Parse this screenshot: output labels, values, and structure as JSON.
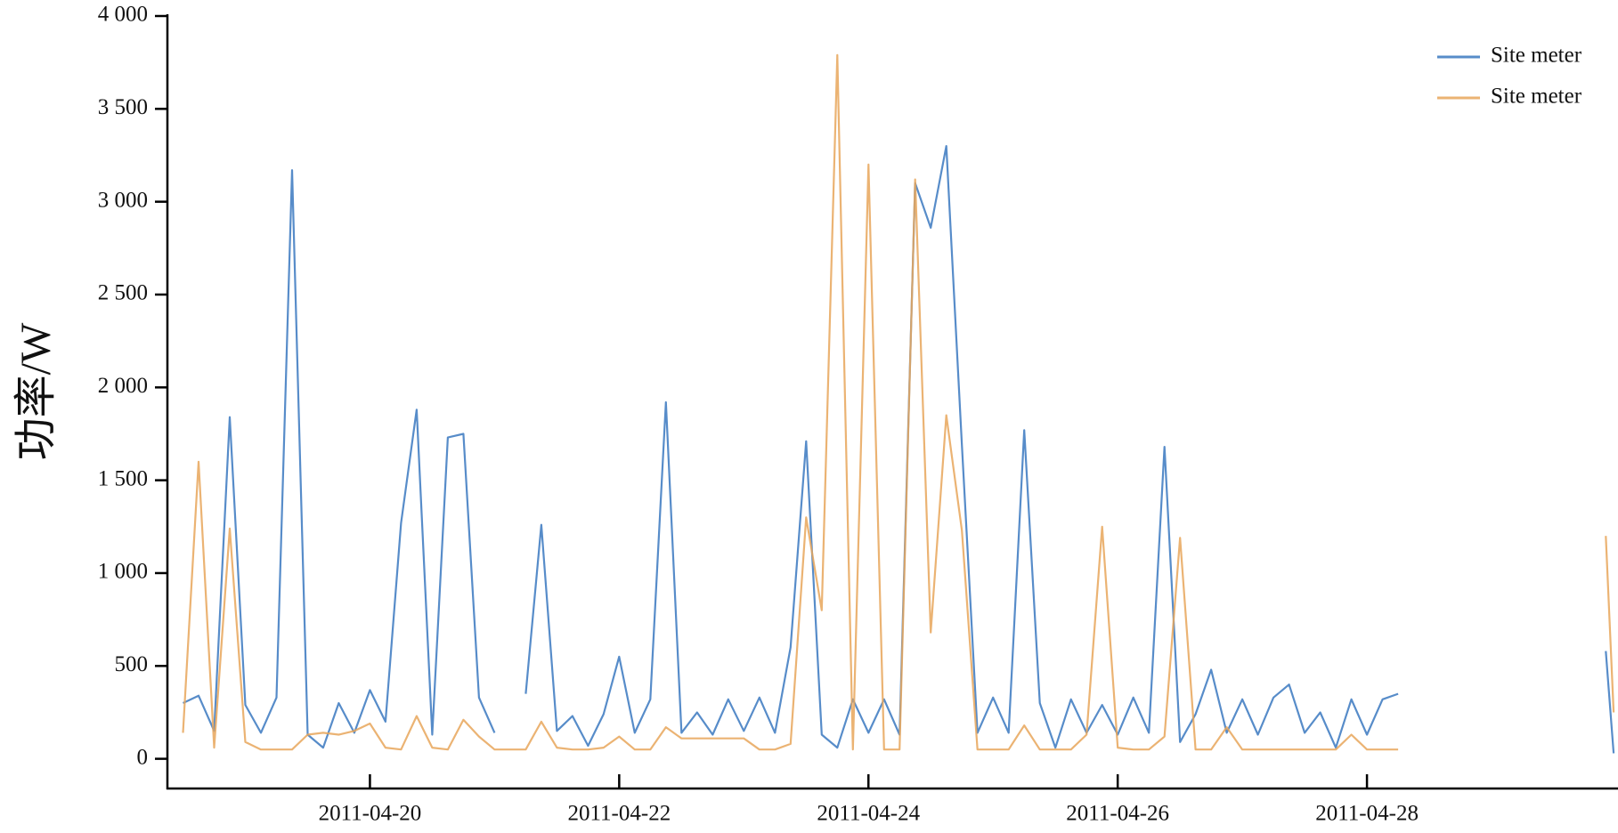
{
  "chart_data": {
    "type": "line",
    "ylabel": "功率/W",
    "x": [
      "2011-04-18T12:00",
      "2011-04-18T15:00",
      "2011-04-18T18:00",
      "2011-04-18T21:00",
      "2011-04-19T00:00",
      "2011-04-19T03:00",
      "2011-04-19T06:00",
      "2011-04-19T09:00",
      "2011-04-19T12:00",
      "2011-04-19T15:00",
      "2011-04-19T18:00",
      "2011-04-19T21:00",
      "2011-04-20T00:00",
      "2011-04-20T03:00",
      "2011-04-20T06:00",
      "2011-04-20T09:00",
      "2011-04-20T12:00",
      "2011-04-20T15:00",
      "2011-04-20T18:00",
      "2011-04-20T21:00",
      "2011-04-21T00:00",
      "2011-04-21T03:00",
      "2011-04-21T06:00",
      "2011-04-21T09:00",
      "2011-04-21T12:00",
      "2011-04-21T15:00",
      "2011-04-21T18:00",
      "2011-04-21T21:00",
      "2011-04-22T00:00",
      "2011-04-22T03:00",
      "2011-04-22T06:00",
      "2011-04-22T09:00",
      "2011-04-22T12:00",
      "2011-04-22T15:00",
      "2011-04-22T18:00",
      "2011-04-22T21:00",
      "2011-04-23T00:00",
      "2011-04-23T03:00",
      "2011-04-23T06:00",
      "2011-04-23T09:00",
      "2011-04-23T12:00",
      "2011-04-23T15:00",
      "2011-04-23T18:00",
      "2011-04-23T21:00",
      "2011-04-24T00:00",
      "2011-04-24T03:00",
      "2011-04-24T06:00",
      "2011-04-24T09:00",
      "2011-04-24T12:00",
      "2011-04-24T15:00",
      "2011-04-24T18:00",
      "2011-04-24T21:00",
      "2011-04-25T00:00",
      "2011-04-25T03:00",
      "2011-04-25T06:00",
      "2011-04-25T09:00",
      "2011-04-25T12:00",
      "2011-04-25T15:00",
      "2011-04-25T18:00",
      "2011-04-25T21:00",
      "2011-04-26T00:00",
      "2011-04-26T03:00",
      "2011-04-26T06:00",
      "2011-04-26T09:00",
      "2011-04-26T12:00",
      "2011-04-26T15:00",
      "2011-04-26T18:00",
      "2011-04-26T21:00",
      "2011-04-27T00:00",
      "2011-04-27T03:00",
      "2011-04-27T06:00",
      "2011-04-27T09:00",
      "2011-04-27T12:00",
      "2011-04-27T15:00",
      "2011-04-27T18:00",
      "2011-04-27T21:00",
      "2011-04-28T00:00",
      "2011-04-28T03:00",
      "2011-04-28T06:00",
      "2011-04-28T09:00",
      "2011-04-29T22:00",
      "2011-04-29T23:30"
    ],
    "series": [
      {
        "name": "Site meter",
        "color": "#3a78c0",
        "values": [
          300,
          340,
          150,
          1840,
          290,
          140,
          330,
          3170,
          130,
          60,
          300,
          140,
          370,
          200,
          1270,
          1880,
          130,
          1730,
          1750,
          330,
          140,
          null,
          350,
          1260,
          150,
          230,
          70,
          240,
          550,
          140,
          320,
          1920,
          140,
          250,
          130,
          320,
          150,
          330,
          140,
          600,
          1710,
          130,
          60,
          320,
          140,
          320,
          130,
          3100,
          2860,
          3300,
          1690,
          140,
          330,
          140,
          1770,
          300,
          60,
          320,
          140,
          290,
          130,
          330,
          140,
          1680,
          90,
          240,
          480,
          140,
          320,
          130,
          330,
          400,
          140,
          250,
          60,
          320,
          130,
          320,
          350,
          null,
          580,
          30
        ]
      },
      {
        "name": "Site meter",
        "color": "#e8a65a",
        "values": [
          140,
          1600,
          60,
          1240,
          90,
          50,
          50,
          50,
          130,
          140,
          130,
          150,
          190,
          60,
          50,
          230,
          60,
          50,
          210,
          120,
          50,
          50,
          50,
          200,
          60,
          50,
          50,
          60,
          120,
          50,
          50,
          170,
          110,
          110,
          110,
          110,
          110,
          50,
          50,
          80,
          1300,
          800,
          3790,
          50,
          3200,
          50,
          50,
          3120,
          680,
          1850,
          1230,
          50,
          50,
          50,
          180,
          50,
          50,
          50,
          130,
          1250,
          60,
          50,
          50,
          120,
          1190,
          50,
          50,
          170,
          50,
          50,
          50,
          50,
          50,
          50,
          50,
          130,
          50,
          50,
          50,
          null,
          1200,
          250
        ]
      }
    ],
    "xlim": [
      "2011-04-18T09:00",
      "2011-04-30T00:00"
    ],
    "xticks": [
      "2011-04-20",
      "2011-04-22",
      "2011-04-24",
      "2011-04-26",
      "2011-04-28"
    ],
    "ylim": [
      -160,
      4000
    ],
    "yticks": [
      0,
      500,
      {
        "value": 1000,
        "label": "1 000"
      },
      {
        "value": 1500,
        "label": "1 500"
      },
      {
        "value": 2000,
        "label": "2 000"
      },
      {
        "value": 2500,
        "label": "2 500"
      },
      {
        "value": 3000,
        "label": "3 000"
      },
      {
        "value": 3500,
        "label": "3 500"
      },
      {
        "value": 4000,
        "label": "4 000"
      }
    ],
    "legend": "upper right"
  }
}
